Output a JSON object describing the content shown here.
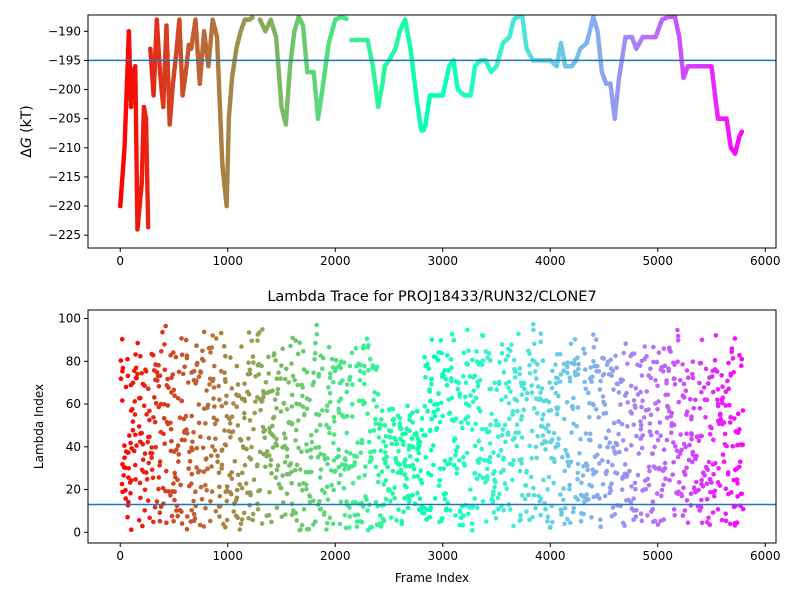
{
  "chart_data": [
    {
      "type": "scatter",
      "title": "",
      "xlabel": "",
      "ylabel": "ΔG (kT)",
      "ylabel_parts": {
        "prefix": "Δ",
        "italic": "G",
        "suffix": " (kT)"
      },
      "xlim": [
        -300,
        6100
      ],
      "ylim": [
        -227.2,
        -187.2
      ],
      "xticks": [
        0,
        1000,
        2000,
        3000,
        4000,
        5000,
        6000
      ],
      "xtick_labels": [
        "0",
        "1000",
        "2000",
        "3000",
        "4000",
        "5000",
        "6000"
      ],
      "yticks": [
        -190,
        -195,
        -200,
        -205,
        -210,
        -215,
        -220,
        -225
      ],
      "ytick_labels": [
        "−190",
        "−195",
        "−200",
        "−205",
        "−210",
        "−215",
        "−220",
        "−225"
      ],
      "hline": {
        "y": -195,
        "color": "#1f77b4"
      },
      "colormap": "rainbow (red at early frames → violet at late frames)",
      "frames_total": 5800,
      "segments": [
        {
          "x": [
            0,
            20,
            40,
            60,
            80,
            100,
            120,
            140,
            160,
            180,
            200,
            220,
            240,
            260
          ],
          "y": [
            -220,
            -215,
            -210,
            -200,
            -190,
            -203,
            -197,
            -196,
            -224,
            -220,
            -216,
            -203,
            -205,
            -224
          ]
        },
        {
          "x": [
            280,
            310,
            340,
            370,
            400,
            430,
            460,
            490,
            520,
            550,
            580,
            610,
            640
          ],
          "y": [
            -193,
            -201,
            -188,
            -197,
            -203,
            -189,
            -206,
            -199,
            -194,
            -188,
            -201,
            -197,
            -192
          ]
        },
        {
          "x": [
            660,
            700,
            740,
            780,
            820,
            860,
            900,
            950,
            990,
            1010,
            1040,
            1080,
            1120,
            1160,
            1200,
            1240
          ],
          "y": [
            -193,
            -188,
            -199,
            -190,
            -196,
            -188,
            -191,
            -213,
            -220,
            -205,
            -198,
            -193,
            -190,
            -188,
            -188,
            -187.5
          ]
        },
        {
          "x": [
            1300,
            1350,
            1400,
            1450,
            1500,
            1540,
            1580,
            1620,
            1660,
            1700,
            1740,
            1800,
            1840,
            1880,
            1940,
            2000,
            2060,
            2120
          ],
          "y": [
            -188,
            -190,
            -188,
            -191,
            -203,
            -206,
            -196,
            -190,
            -187.5,
            -189,
            -197,
            -197,
            -205,
            -200,
            -192,
            -188,
            -187.5,
            -188
          ]
        },
        {
          "x": [
            2150,
            2200,
            2250,
            2300,
            2350,
            2400,
            2440,
            2460,
            2500,
            2560,
            2600,
            2650,
            2700,
            2760,
            2800,
            2820,
            2840,
            2880,
            2940,
            3000,
            3060,
            3100,
            3140,
            3200,
            3260,
            3300,
            3350,
            3400,
            3450,
            3500,
            3560,
            3620,
            3660,
            3700,
            3740,
            3780,
            3840,
            3880,
            3940,
            4000,
            4060,
            4100,
            4140,
            4200,
            4240,
            4280,
            4340,
            4400,
            4440,
            4480,
            4520,
            4560,
            4600,
            4640,
            4700,
            4760,
            4800,
            4860,
            4920,
            4980,
            5040,
            5100,
            5160,
            5200,
            5240,
            5280,
            5320,
            5380,
            5440,
            5500,
            5560,
            5600,
            5640,
            5680,
            5720,
            5760,
            5790
          ],
          "y": [
            -191.5,
            -191.5,
            -191.5,
            -191.5,
            -196,
            -203,
            -199,
            -196,
            -195,
            -193,
            -190,
            -188,
            -193,
            -202,
            -207,
            -207,
            -206,
            -201,
            -201,
            -201,
            -196,
            -195,
            -200,
            -201,
            -201,
            -196,
            -195,
            -195,
            -197,
            -196,
            -192,
            -191,
            -188,
            -187.5,
            -187.5,
            -193,
            -195,
            -195,
            -195,
            -195,
            -196,
            -192,
            -196,
            -196,
            -195,
            -193,
            -192,
            -187.5,
            -190,
            -197,
            -199,
            -199,
            -205,
            -198,
            -191,
            -191,
            -193,
            -191,
            -191,
            -191,
            -188,
            -187.5,
            -187.5,
            -191,
            -198,
            -196,
            -196,
            -196,
            -196,
            -196,
            -205,
            -205,
            -205,
            -210,
            -211,
            -208,
            -207
          ]
        }
      ]
    },
    {
      "type": "scatter",
      "title": "Lambda Trace for PROJ18433/RUN32/CLONE7",
      "xlabel": "Frame Index",
      "ylabel": "Lambda Index",
      "xlim": [
        -300,
        6100
      ],
      "ylim": [
        -5,
        104
      ],
      "xticks": [
        0,
        1000,
        2000,
        3000,
        4000,
        5000,
        6000
      ],
      "xtick_labels": [
        "0",
        "1000",
        "2000",
        "3000",
        "4000",
        "5000",
        "6000"
      ],
      "yticks": [
        0,
        20,
        40,
        60,
        80,
        100
      ],
      "ytick_labels": [
        "0",
        "20",
        "40",
        "60",
        "80",
        "100"
      ],
      "hline": {
        "y": 13,
        "color": "#1f77b4"
      },
      "colormap": "rainbow (red at early frames → violet at late frames)",
      "frames_total": 5800,
      "lambda_range": [
        0,
        99
      ],
      "density_note": "dense vertical sweeps between lambda 0 and 99 across all frames; late-frame sweeps concentrate below ~60 between frames 2400–2800"
    }
  ]
}
